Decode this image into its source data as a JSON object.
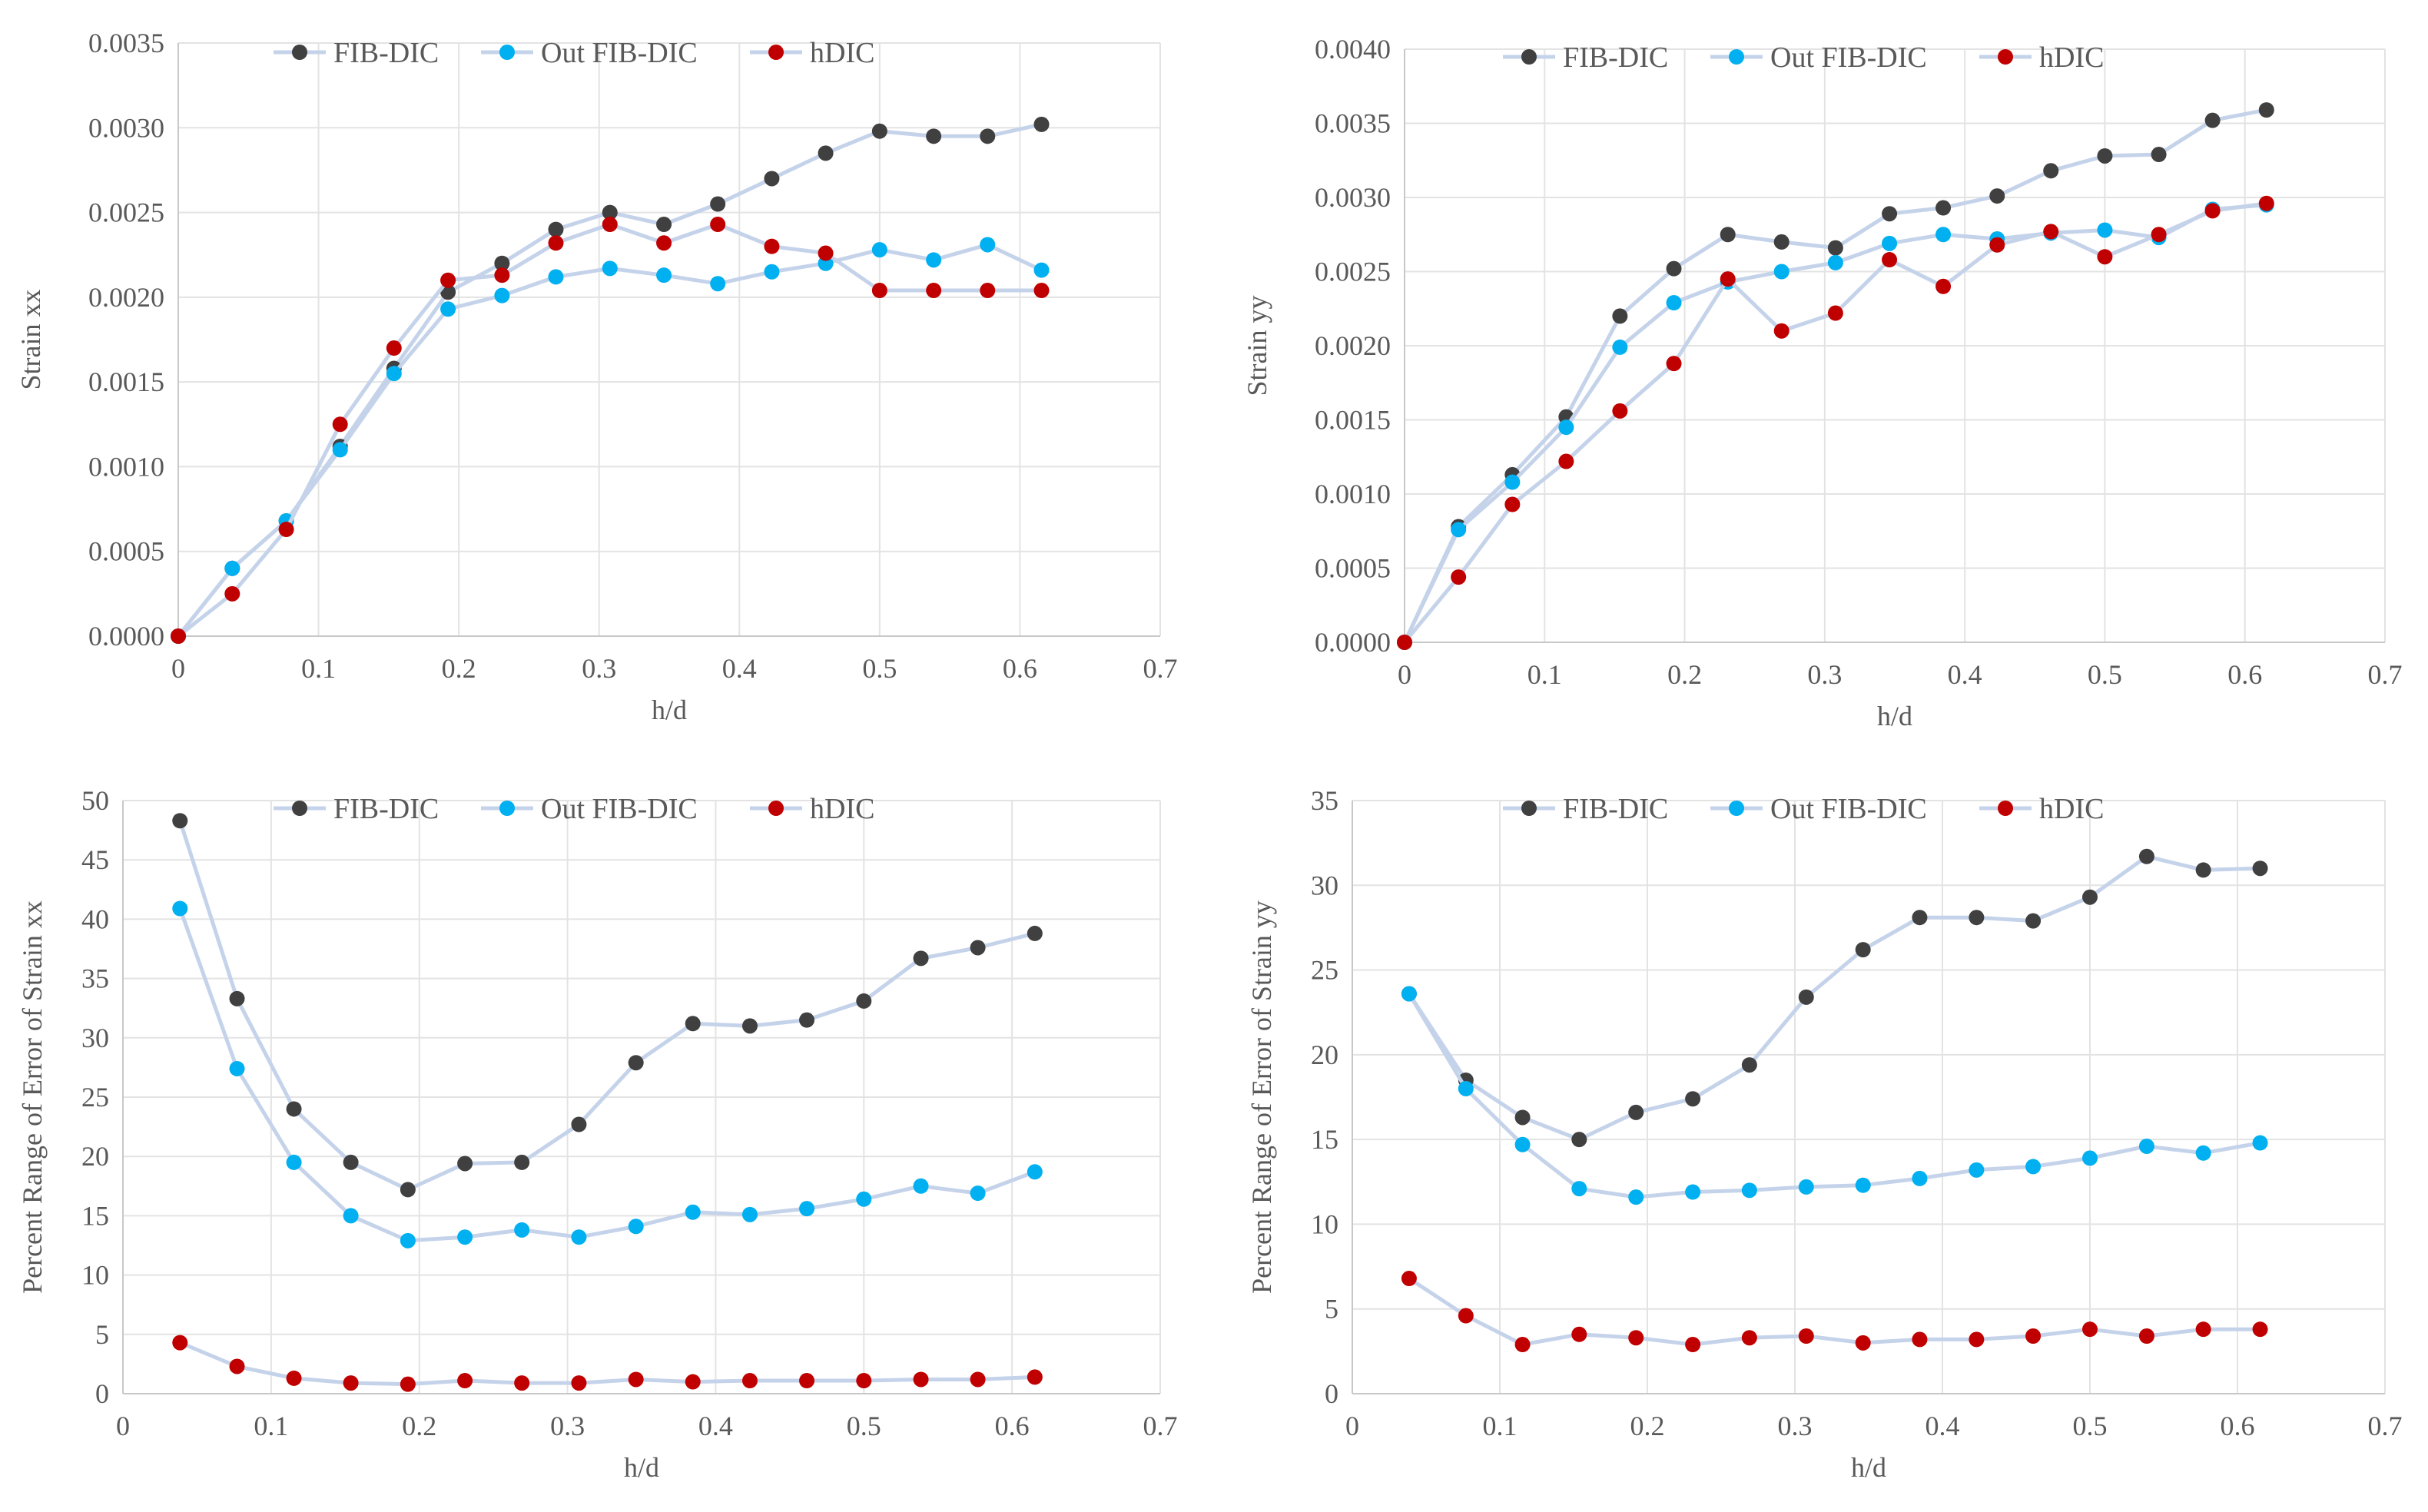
{
  "chart_data": [
    {
      "type": "line",
      "title": "",
      "xlabel": "h/d",
      "ylabel": "Strain xx",
      "xlim": [
        0,
        0.7
      ],
      "ylim": [
        0,
        0.0035
      ],
      "xticks": [
        "0",
        "0.1",
        "0.2",
        "0.3",
        "0.4",
        "0.5",
        "0.6",
        "0.7"
      ],
      "yticks": [
        "0.0000",
        "0.0005",
        "0.0010",
        "0.0015",
        "0.0020",
        "0.0025",
        "0.0030",
        "0.0035"
      ],
      "legend_position": "top",
      "series": [
        {
          "name": "FIB-DIC",
          "color": "#404040",
          "x": [
            0,
            0.0385,
            0.077,
            0.1154,
            0.1538,
            0.1923,
            0.2308,
            0.2692,
            0.3077,
            0.3462,
            0.3846,
            0.4231,
            0.4615,
            0.5,
            0.5385,
            0.5769,
            0.6154
          ],
          "y": [
            0.0,
            0.0004,
            0.00068,
            0.00112,
            0.00158,
            0.00203,
            0.0022,
            0.0024,
            0.0025,
            0.00243,
            0.00255,
            0.0027,
            0.00285,
            0.00298,
            0.00295,
            0.00295,
            0.00302
          ]
        },
        {
          "name": "Out FIB-DIC",
          "color": "#00b0f0",
          "x": [
            0,
            0.0385,
            0.077,
            0.1154,
            0.1538,
            0.1923,
            0.2308,
            0.2692,
            0.3077,
            0.3462,
            0.3846,
            0.4231,
            0.4615,
            0.5,
            0.5385,
            0.5769,
            0.6154
          ],
          "y": [
            0.0,
            0.0004,
            0.00068,
            0.0011,
            0.00155,
            0.00193,
            0.00201,
            0.00212,
            0.00217,
            0.00213,
            0.00208,
            0.00215,
            0.0022,
            0.00228,
            0.00222,
            0.00231,
            0.00216
          ]
        },
        {
          "name": "hDIC",
          "color": "#c00000",
          "x": [
            0,
            0.0385,
            0.077,
            0.1154,
            0.1538,
            0.1923,
            0.2308,
            0.2692,
            0.3077,
            0.3462,
            0.3846,
            0.4231,
            0.4615,
            0.5,
            0.5385,
            0.5769,
            0.6154
          ],
          "y": [
            0.0,
            0.00025,
            0.00063,
            0.00125,
            0.0017,
            0.0021,
            0.00213,
            0.00232,
            0.00243,
            0.00232,
            0.00243,
            0.0023,
            0.00226,
            0.00204,
            0.00204,
            0.00204,
            0.00204
          ]
        }
      ]
    },
    {
      "type": "line",
      "title": "",
      "xlabel": "h/d",
      "ylabel": "Strain yy",
      "xlim": [
        0,
        0.7
      ],
      "ylim": [
        0,
        0.004
      ],
      "xticks": [
        "0",
        "0.1",
        "0.2",
        "0.3",
        "0.4",
        "0.5",
        "0.6",
        "0.7"
      ],
      "yticks": [
        "0.0000",
        "0.0005",
        "0.0010",
        "0.0015",
        "0.0020",
        "0.0025",
        "0.0030",
        "0.0035",
        "0.0040"
      ],
      "legend_position": "top",
      "series": [
        {
          "name": "FIB-DIC",
          "color": "#404040",
          "x": [
            0,
            0.0385,
            0.077,
            0.1154,
            0.1538,
            0.1923,
            0.2308,
            0.2692,
            0.3077,
            0.3462,
            0.3846,
            0.4231,
            0.4615,
            0.5,
            0.5385,
            0.5769,
            0.6154
          ],
          "y": [
            0.0,
            0.00078,
            0.00113,
            0.00152,
            0.0022,
            0.00252,
            0.00275,
            0.0027,
            0.00266,
            0.00289,
            0.00293,
            0.00301,
            0.00318,
            0.00328,
            0.00329,
            0.00352,
            0.00359
          ]
        },
        {
          "name": "Out FIB-DIC",
          "color": "#00b0f0",
          "x": [
            0,
            0.0385,
            0.077,
            0.1154,
            0.1538,
            0.1923,
            0.2308,
            0.2692,
            0.3077,
            0.3462,
            0.3846,
            0.4231,
            0.4615,
            0.5,
            0.5385,
            0.5769,
            0.6154
          ],
          "y": [
            0.0,
            0.00076,
            0.00108,
            0.00145,
            0.00199,
            0.00229,
            0.00243,
            0.0025,
            0.00256,
            0.00269,
            0.00275,
            0.00272,
            0.00276,
            0.00278,
            0.00273,
            0.00292,
            0.00295
          ]
        },
        {
          "name": "hDIC",
          "color": "#c00000",
          "x": [
            0,
            0.0385,
            0.077,
            0.1154,
            0.1538,
            0.1923,
            0.2308,
            0.2692,
            0.3077,
            0.3462,
            0.3846,
            0.4231,
            0.4615,
            0.5,
            0.5385,
            0.5769,
            0.6154
          ],
          "y": [
            0.0,
            0.00044,
            0.00093,
            0.00122,
            0.00156,
            0.00188,
            0.00245,
            0.0021,
            0.00222,
            0.00258,
            0.0024,
            0.00268,
            0.00277,
            0.0026,
            0.00275,
            0.00291,
            0.00296
          ]
        }
      ]
    },
    {
      "type": "line",
      "title": "",
      "xlabel": "h/d",
      "ylabel": "Percent Range of Error of Strain xx",
      "xlim": [
        0,
        0.7
      ],
      "ylim": [
        0,
        50
      ],
      "xticks": [
        "0",
        "0.1",
        "0.2",
        "0.3",
        "0.4",
        "0.5",
        "0.6",
        "0.7"
      ],
      "yticks": [
        "0",
        "5",
        "10",
        "15",
        "20",
        "25",
        "30",
        "35",
        "40",
        "45",
        "50"
      ],
      "legend_position": "top",
      "series": [
        {
          "name": "FIB-DIC",
          "color": "#404040",
          "x": [
            0.0385,
            0.077,
            0.1154,
            0.1538,
            0.1923,
            0.2308,
            0.2692,
            0.3077,
            0.3462,
            0.3846,
            0.4231,
            0.4615,
            0.5,
            0.5385,
            0.5769,
            0.6154
          ],
          "y": [
            48.3,
            33.3,
            24.0,
            19.5,
            17.2,
            19.4,
            19.5,
            22.7,
            27.9,
            31.2,
            31.0,
            31.5,
            33.1,
            36.7,
            37.6,
            38.8
          ]
        },
        {
          "name": "Out FIB-DIC",
          "color": "#00b0f0",
          "x": [
            0.0385,
            0.077,
            0.1154,
            0.1538,
            0.1923,
            0.2308,
            0.2692,
            0.3077,
            0.3462,
            0.3846,
            0.4231,
            0.4615,
            0.5,
            0.5385,
            0.5769,
            0.6154
          ],
          "y": [
            40.9,
            27.4,
            19.5,
            15.0,
            12.9,
            13.2,
            13.8,
            13.2,
            14.1,
            15.3,
            15.1,
            15.6,
            16.4,
            17.5,
            16.9,
            18.7
          ]
        },
        {
          "name": "hDIC",
          "color": "#c00000",
          "x": [
            0.0385,
            0.077,
            0.1154,
            0.1538,
            0.1923,
            0.2308,
            0.2692,
            0.3077,
            0.3462,
            0.3846,
            0.4231,
            0.4615,
            0.5,
            0.5385,
            0.5769,
            0.6154
          ],
          "y": [
            4.3,
            2.3,
            1.3,
            0.9,
            0.8,
            1.1,
            0.9,
            0.9,
            1.2,
            1.0,
            1.1,
            1.1,
            1.1,
            1.2,
            1.2,
            1.4
          ]
        }
      ]
    },
    {
      "type": "line",
      "title": "",
      "xlabel": "h/d",
      "ylabel": "Percent Range of Error of Strain yy",
      "xlim": [
        0,
        0.7
      ],
      "ylim": [
        0,
        35
      ],
      "xticks": [
        "0",
        "0.1",
        "0.2",
        "0.3",
        "0.4",
        "0.5",
        "0.6",
        "0.7"
      ],
      "yticks": [
        "0",
        "5",
        "10",
        "15",
        "20",
        "25",
        "30",
        "35"
      ],
      "legend_position": "top",
      "series": [
        {
          "name": "FIB-DIC",
          "color": "#404040",
          "x": [
            0.0385,
            0.077,
            0.1154,
            0.1538,
            0.1923,
            0.2308,
            0.2692,
            0.3077,
            0.3462,
            0.3846,
            0.4231,
            0.4615,
            0.5,
            0.5385,
            0.5769,
            0.6154
          ],
          "y": [
            23.6,
            18.5,
            16.3,
            15.0,
            16.6,
            17.4,
            19.4,
            23.4,
            26.2,
            28.1,
            28.1,
            27.9,
            29.3,
            31.7,
            30.9,
            31.0
          ]
        },
        {
          "name": "Out FIB-DIC",
          "color": "#00b0f0",
          "x": [
            0.0385,
            0.077,
            0.1154,
            0.1538,
            0.1923,
            0.2308,
            0.2692,
            0.3077,
            0.3462,
            0.3846,
            0.4231,
            0.4615,
            0.5,
            0.5385,
            0.5769,
            0.6154
          ],
          "y": [
            23.6,
            18.0,
            14.7,
            12.1,
            11.6,
            11.9,
            12.0,
            12.2,
            12.3,
            12.7,
            13.2,
            13.4,
            13.9,
            14.6,
            14.2,
            14.8
          ]
        },
        {
          "name": "hDIC",
          "color": "#c00000",
          "x": [
            0.0385,
            0.077,
            0.1154,
            0.1538,
            0.1923,
            0.2308,
            0.2692,
            0.3077,
            0.3462,
            0.3846,
            0.4231,
            0.4615,
            0.5,
            0.5385,
            0.5769,
            0.6154
          ],
          "y": [
            6.8,
            4.6,
            2.9,
            3.5,
            3.3,
            2.9,
            3.3,
            3.4,
            3.0,
            3.2,
            3.2,
            3.4,
            3.8,
            3.4,
            3.8,
            3.8
          ]
        }
      ]
    }
  ]
}
